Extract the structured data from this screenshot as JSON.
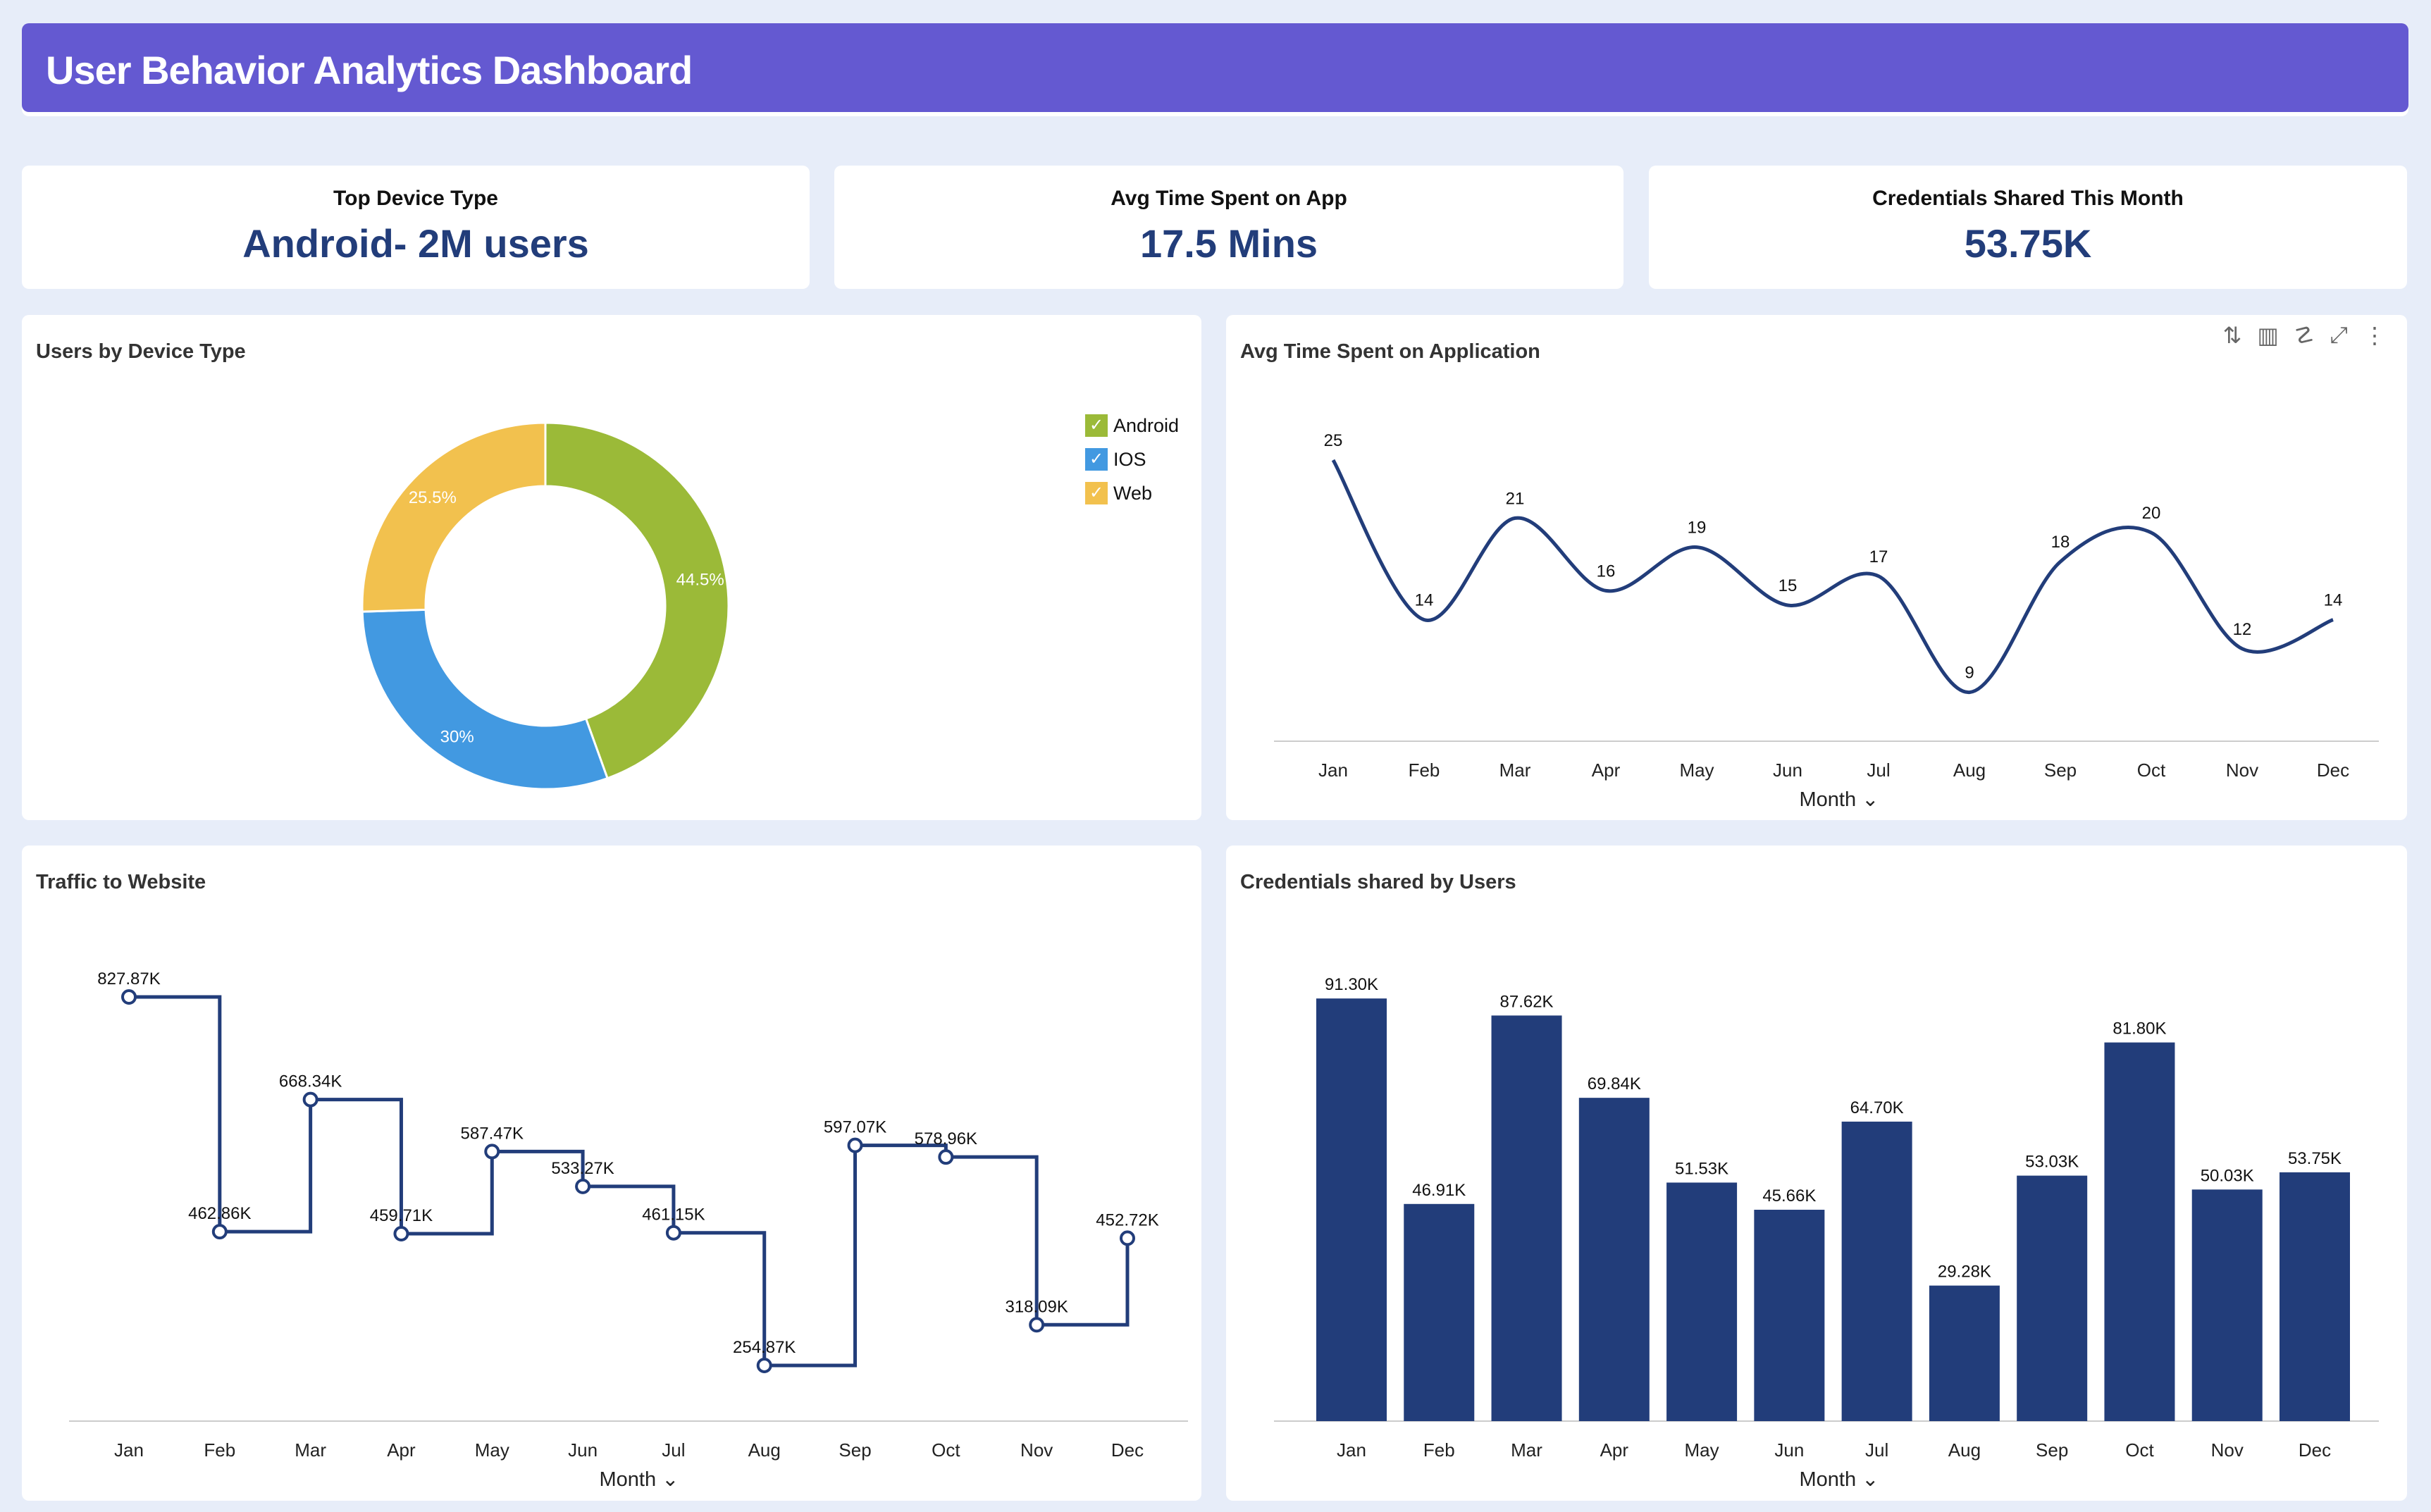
{
  "header": {
    "title": "User Behavior Analytics Dashboard",
    "color": "#6459d1"
  },
  "kpis": [
    {
      "label": "Top Device Type",
      "value": "Android- 2M users"
    },
    {
      "label": "Avg Time Spent on App",
      "value": "17.5 Mins"
    },
    {
      "label": "Credentials Shared This Month",
      "value": "53.75K"
    }
  ],
  "toolbar_icons": [
    "sort-icon",
    "bar-chart-icon",
    "zia-icon",
    "expand-icon",
    "more-icon"
  ],
  "months": [
    "Jan",
    "Feb",
    "Mar",
    "Apr",
    "May",
    "Jun",
    "Jul",
    "Aug",
    "Sep",
    "Oct",
    "Nov",
    "Dec"
  ],
  "chart_data": [
    {
      "type": "pie",
      "title": "Users by Device Type",
      "donut": true,
      "categories": [
        "Android",
        "IOS",
        "Web"
      ],
      "values": [
        44.5,
        30,
        25.5
      ],
      "labels": [
        "44.5%",
        "30%",
        "25.5%"
      ],
      "colors": [
        "#9bba38",
        "#4299e1",
        "#f2c14e"
      ],
      "legend": "top-right"
    },
    {
      "type": "line",
      "title": "Avg Time Spent on Application",
      "xlabel": "Month",
      "smooth": true,
      "values": [
        25,
        14,
        21,
        16,
        19,
        15,
        17,
        9,
        18,
        20,
        12,
        14
      ],
      "labels": [
        "25",
        "14",
        "21",
        "16",
        "19",
        "15",
        "17",
        "9",
        "18",
        "20",
        "12",
        "14"
      ],
      "color": "#223d7a"
    },
    {
      "type": "line",
      "step": true,
      "title": "Traffic to Website",
      "xlabel": "Month",
      "values": [
        827.87,
        462.86,
        668.34,
        459.71,
        587.47,
        533.27,
        461.15,
        254.87,
        597.07,
        578.96,
        318.09,
        452.72
      ],
      "labels": [
        "827.87K",
        "462.86K",
        "668.34K",
        "459.71K",
        "587.47K",
        "533.27K",
        "461.15K",
        "254.87K",
        "597.07K",
        "578.96K",
        "318.09K",
        "452.72K"
      ],
      "color": "#223d7a"
    },
    {
      "type": "bar",
      "title": "Credentials shared by Users",
      "xlabel": "Month",
      "values": [
        91.3,
        46.91,
        87.62,
        69.84,
        51.53,
        45.66,
        64.7,
        29.28,
        53.03,
        81.8,
        50.03,
        53.75
      ],
      "labels": [
        "91.30K",
        "46.91K",
        "87.62K",
        "69.84K",
        "51.53K",
        "45.66K",
        "64.70K",
        "29.28K",
        "53.03K",
        "81.80K",
        "50.03K",
        "53.75K"
      ],
      "color": "#223d7a"
    }
  ]
}
